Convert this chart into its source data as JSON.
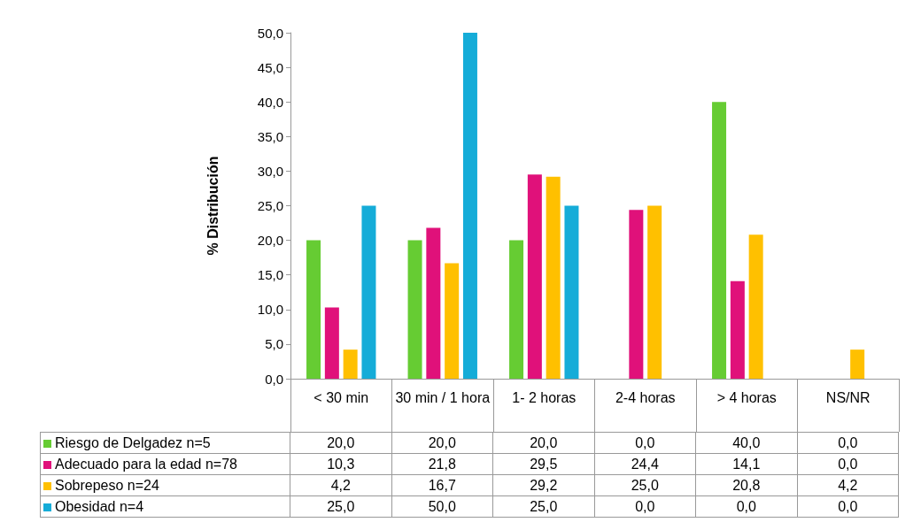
{
  "chart_data": {
    "type": "bar",
    "ylabel": "% Distribución",
    "categories": [
      "< 30 min",
      "30 min / 1 hora",
      "1- 2 horas",
      "2-4 horas",
      "> 4 horas",
      "NS/NR"
    ],
    "series": [
      {
        "name": "Riesgo de Delgadez n=5",
        "color": "#66cc33",
        "values": [
          20.0,
          20.0,
          20.0,
          0.0,
          40.0,
          0.0
        ],
        "value_labels": [
          "20,0",
          "20,0",
          "20,0",
          "0,0",
          "40,0",
          "0,0"
        ]
      },
      {
        "name": "Adecuado para la edad n=78",
        "color": "#e0117a",
        "values": [
          10.3,
          21.8,
          29.5,
          24.4,
          14.1,
          0.0
        ],
        "value_labels": [
          "10,3",
          "21,8",
          "29,5",
          "24,4",
          "14,1",
          "0,0"
        ]
      },
      {
        "name": "Sobrepeso n=24",
        "color": "#ffc000",
        "values": [
          4.2,
          16.7,
          29.2,
          25.0,
          20.8,
          4.2
        ],
        "value_labels": [
          "4,2",
          "16,7",
          "29,2",
          "25,0",
          "20,8",
          "4,2"
        ]
      },
      {
        "name": "Obesidad n=4",
        "color": "#15acd8",
        "values": [
          25.0,
          50.0,
          25.0,
          0.0,
          0.0,
          0.0
        ],
        "value_labels": [
          "25,0",
          "50,0",
          "25,0",
          "0,0",
          "0,0",
          "0,0"
        ]
      }
    ],
    "ylim": [
      0,
      50
    ],
    "yticks": [
      {
        "value": 0,
        "label": "0,0"
      },
      {
        "value": 5,
        "label": "5,0"
      },
      {
        "value": 10,
        "label": "10,0"
      },
      {
        "value": 15,
        "label": "15,0"
      },
      {
        "value": 20,
        "label": "20,0"
      },
      {
        "value": 25,
        "label": "25,0"
      },
      {
        "value": 30,
        "label": "30,0"
      },
      {
        "value": 35,
        "label": "35,0"
      },
      {
        "value": 40,
        "label": "40,0"
      },
      {
        "value": 45,
        "label": "45,0"
      },
      {
        "value": 50,
        "label": "50,0"
      }
    ],
    "legend": "bottom"
  }
}
